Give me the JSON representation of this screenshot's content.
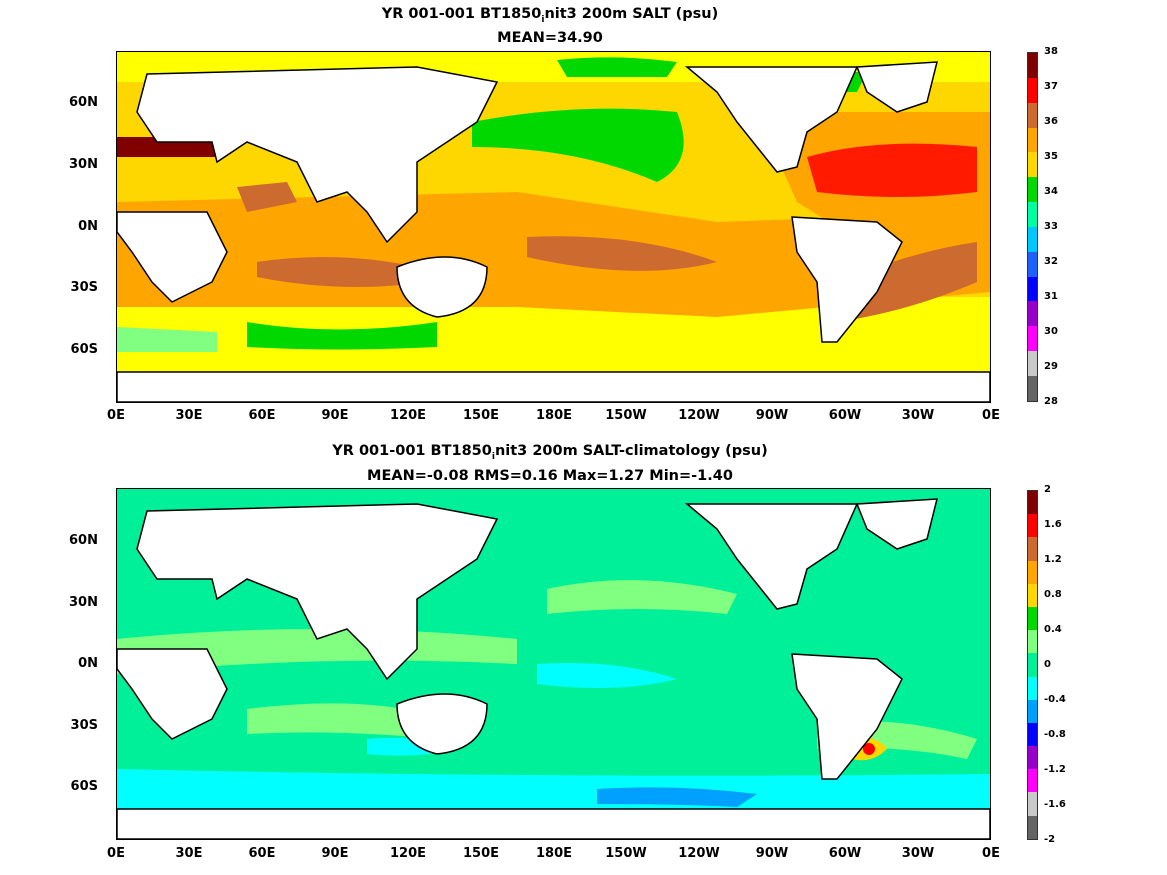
{
  "panel1": {
    "title": "YR 001-001 BT1850",
    "title_sub": "i",
    "title_rest": "nit3 200m SALT (psu)",
    "subtitle": "MEAN=34.90",
    "lat_labels": [
      "60N",
      "30N",
      "0N",
      "30S",
      "60S"
    ],
    "lon_labels": [
      "0E",
      "30E",
      "60E",
      "90E",
      "120E",
      "150E",
      "180E",
      "150W",
      "120W",
      "90W",
      "60W",
      "30W",
      "0E"
    ],
    "colorbar_labels": [
      "38",
      "37",
      "36",
      "35",
      "34",
      "33",
      "32",
      "31",
      "30",
      "29",
      "28"
    ],
    "colorbar_colors": [
      "#800000",
      "#ff0000",
      "#cd6a30",
      "#ffa500",
      "#ffd700",
      "#00d800",
      "#00ffa0",
      "#00c8ff",
      "#2060ff",
      "#0000ff",
      "#9600c8",
      "#ff00ff",
      "#c8c8c8",
      "#646464"
    ]
  },
  "panel2": {
    "title": "YR 001-001 BT1850",
    "title_sub": "i",
    "title_rest": "nit3 200m SALT-climatology (psu)",
    "subtitle": "MEAN=-0.08   RMS=0.16   Max=1.27   Min=-1.40",
    "lat_labels": [
      "60N",
      "30N",
      "0N",
      "30S",
      "60S"
    ],
    "lon_labels": [
      "0E",
      "30E",
      "60E",
      "90E",
      "120E",
      "150E",
      "180E",
      "150W",
      "120W",
      "90W",
      "60W",
      "30W",
      "0E"
    ],
    "colorbar_labels": [
      "2",
      "1.6",
      "1.2",
      "0.8",
      "0.4",
      "0",
      "-0.4",
      "-0.8",
      "-1.2",
      "-1.6",
      "-2"
    ],
    "colorbar_colors": [
      "#800000",
      "#ff0000",
      "#cd6a30",
      "#ffa500",
      "#ffd700",
      "#00d800",
      "#80ff80",
      "#00f09a",
      "#00ffff",
      "#00a0ff",
      "#0000ff",
      "#9600c8",
      "#ff00ff",
      "#c8c8c8",
      "#646464"
    ]
  },
  "colors": {
    "land": "#ffffff",
    "coast": "#000000",
    "salt_yellow": "#ffff00",
    "salt_gold": "#ffd700",
    "salt_orange": "#ffa500",
    "salt_brown": "#cd6a30",
    "salt_red": "#ff1a00",
    "salt_green": "#00d800",
    "salt_lightgreen": "#80ff80",
    "anom_zero": "#00f09a",
    "anom_pos": "#80ff80",
    "anom_neg": "#00ffff",
    "anom_neg2": "#00a0ff"
  }
}
